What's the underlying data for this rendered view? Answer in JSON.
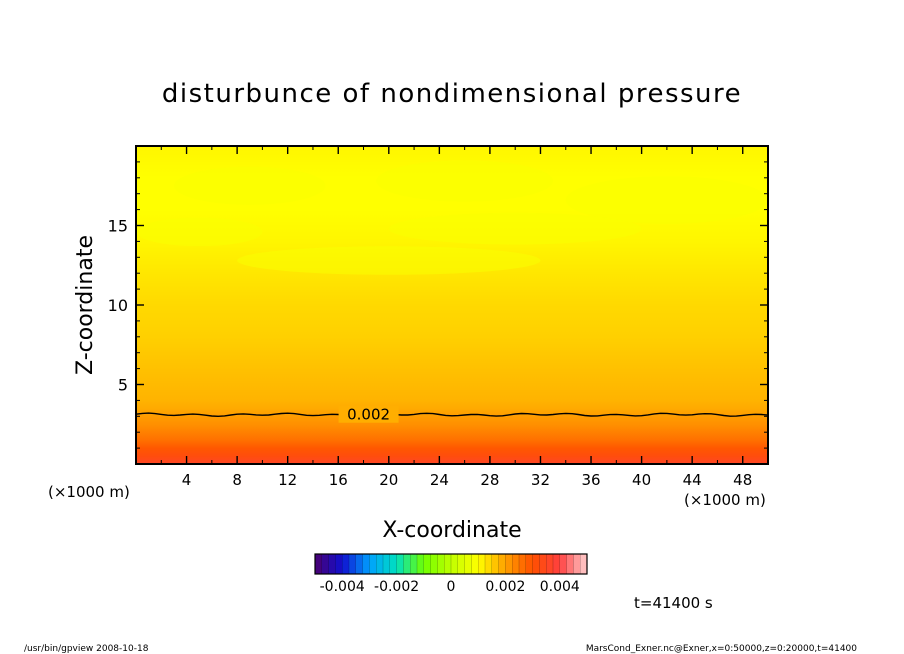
{
  "chart_data": {
    "type": "heatmap",
    "title": "disturbunce of nondimensional pressure",
    "xlabel": "X-coordinate",
    "ylabel": "Z-coordinate",
    "x_unit": "(×1000 m)",
    "y_unit": "(×1000 m)",
    "xlim": [
      0,
      50
    ],
    "ylim": [
      0,
      20
    ],
    "x_ticks": [
      4,
      8,
      12,
      16,
      20,
      24,
      28,
      32,
      36,
      40,
      44,
      48
    ],
    "y_ticks": [
      5,
      10,
      15
    ],
    "contours": [
      {
        "level": 0.002,
        "label": "0.002",
        "z": 3.1
      }
    ],
    "value_profile": {
      "z": [
        0,
        0.5,
        1,
        1.5,
        2,
        2.5,
        3,
        3.5,
        4,
        6,
        8,
        10,
        12,
        14,
        16,
        18,
        20
      ],
      "value": [
        0.0036,
        0.0032,
        0.0029,
        0.0026,
        0.0024,
        0.0022,
        0.00205,
        0.0019,
        0.0018,
        0.00165,
        0.0015,
        0.0014,
        0.00125,
        0.0011,
        0.001,
        0.001,
        0.0011
      ]
    },
    "colorbar": {
      "min": -0.005,
      "max": 0.005,
      "tick_labels": [
        "-0.004",
        "-0.002",
        "0",
        "0.002",
        "0.004"
      ],
      "tick_values": [
        -0.004,
        -0.002,
        0,
        0.002,
        0.004
      ]
    },
    "time_label": "t=41400 s",
    "colors": [
      "#4b0070",
      "#1010d0",
      "#00a0ff",
      "#00e0c0",
      "#70ff00",
      "#c0ff00",
      "#ffff00",
      "#ffa000",
      "#ff5000",
      "#ff4040",
      "#ffd0d0"
    ]
  },
  "footer": {
    "left": "/usr/bin/gpview   2008-10-18",
    "right": "MarsCond_Exner.nc@Exner,x=0:50000,z=0:20000,t=41400"
  }
}
